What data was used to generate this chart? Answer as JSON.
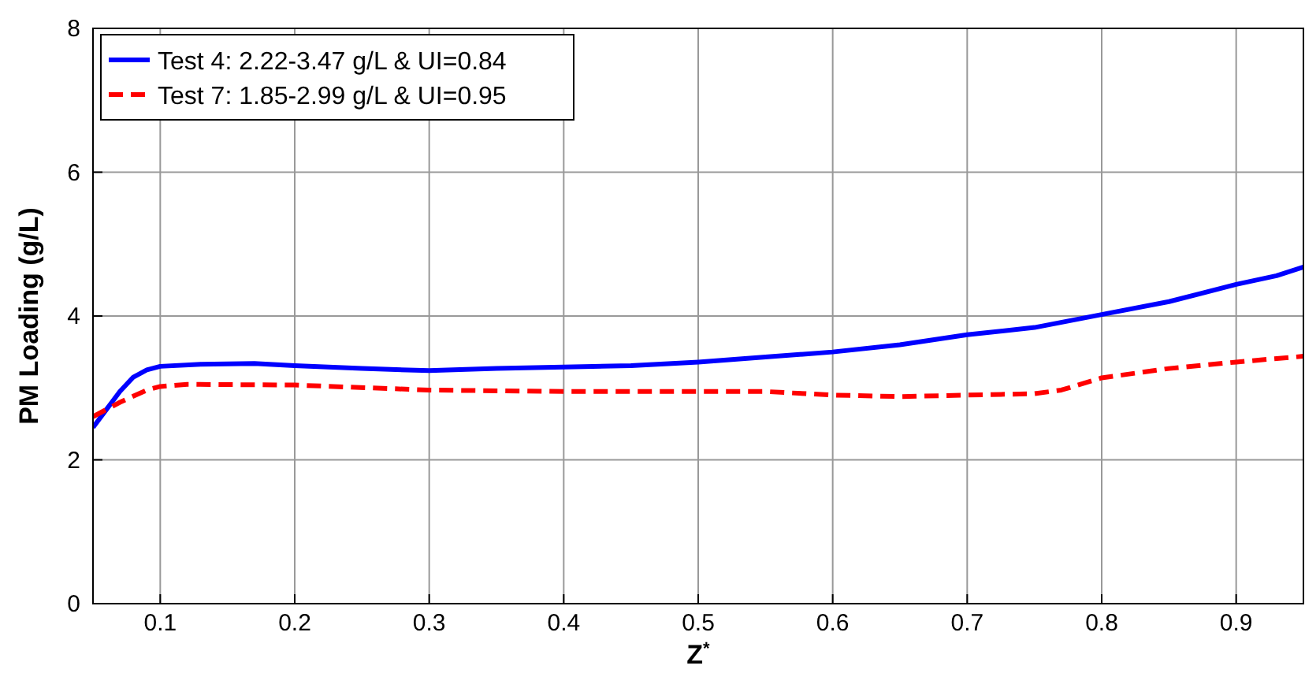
{
  "chart_data": {
    "type": "line",
    "xlabel": "Z$^{*}$",
    "ylabel": "PM Loading (g/L)",
    "xlim": [
      0.05,
      0.95
    ],
    "xticks": [
      0.1,
      0.2,
      0.3,
      0.4,
      0.5,
      0.6,
      0.7,
      0.8,
      0.9
    ],
    "ylim": [
      0,
      8
    ],
    "yticks": [
      0,
      2,
      4,
      6,
      8
    ],
    "grid": true,
    "legend": "top left",
    "series": [
      {
        "name": "Test 4: 2.22-3.47 g/L & UI=0.84",
        "color": "#0000ff",
        "line_style": "solid",
        "x": [
          0.05,
          0.06,
          0.07,
          0.08,
          0.09,
          0.1,
          0.13,
          0.17,
          0.2,
          0.25,
          0.3,
          0.35,
          0.4,
          0.45,
          0.5,
          0.55,
          0.6,
          0.65,
          0.7,
          0.75,
          0.8,
          0.85,
          0.9,
          0.93,
          0.95
        ],
        "values": [
          2.45,
          2.7,
          2.95,
          3.15,
          3.25,
          3.3,
          3.33,
          3.34,
          3.31,
          3.27,
          3.24,
          3.27,
          3.29,
          3.31,
          3.36,
          3.43,
          3.5,
          3.6,
          3.74,
          3.84,
          4.02,
          4.2,
          4.44,
          4.56,
          4.68
        ]
      },
      {
        "name": "Test 7: 1.85-2.99 g/L & UI=0.95",
        "color": "#ff0000",
        "line_style": "dashed",
        "x": [
          0.05,
          0.07,
          0.09,
          0.1,
          0.12,
          0.2,
          0.3,
          0.4,
          0.5,
          0.55,
          0.6,
          0.65,
          0.7,
          0.75,
          0.77,
          0.8,
          0.85,
          0.9,
          0.95
        ],
        "values": [
          2.6,
          2.8,
          2.97,
          3.02,
          3.05,
          3.04,
          2.97,
          2.95,
          2.95,
          2.95,
          2.9,
          2.88,
          2.9,
          2.92,
          2.97,
          3.14,
          3.27,
          3.36,
          3.44
        ]
      }
    ]
  }
}
